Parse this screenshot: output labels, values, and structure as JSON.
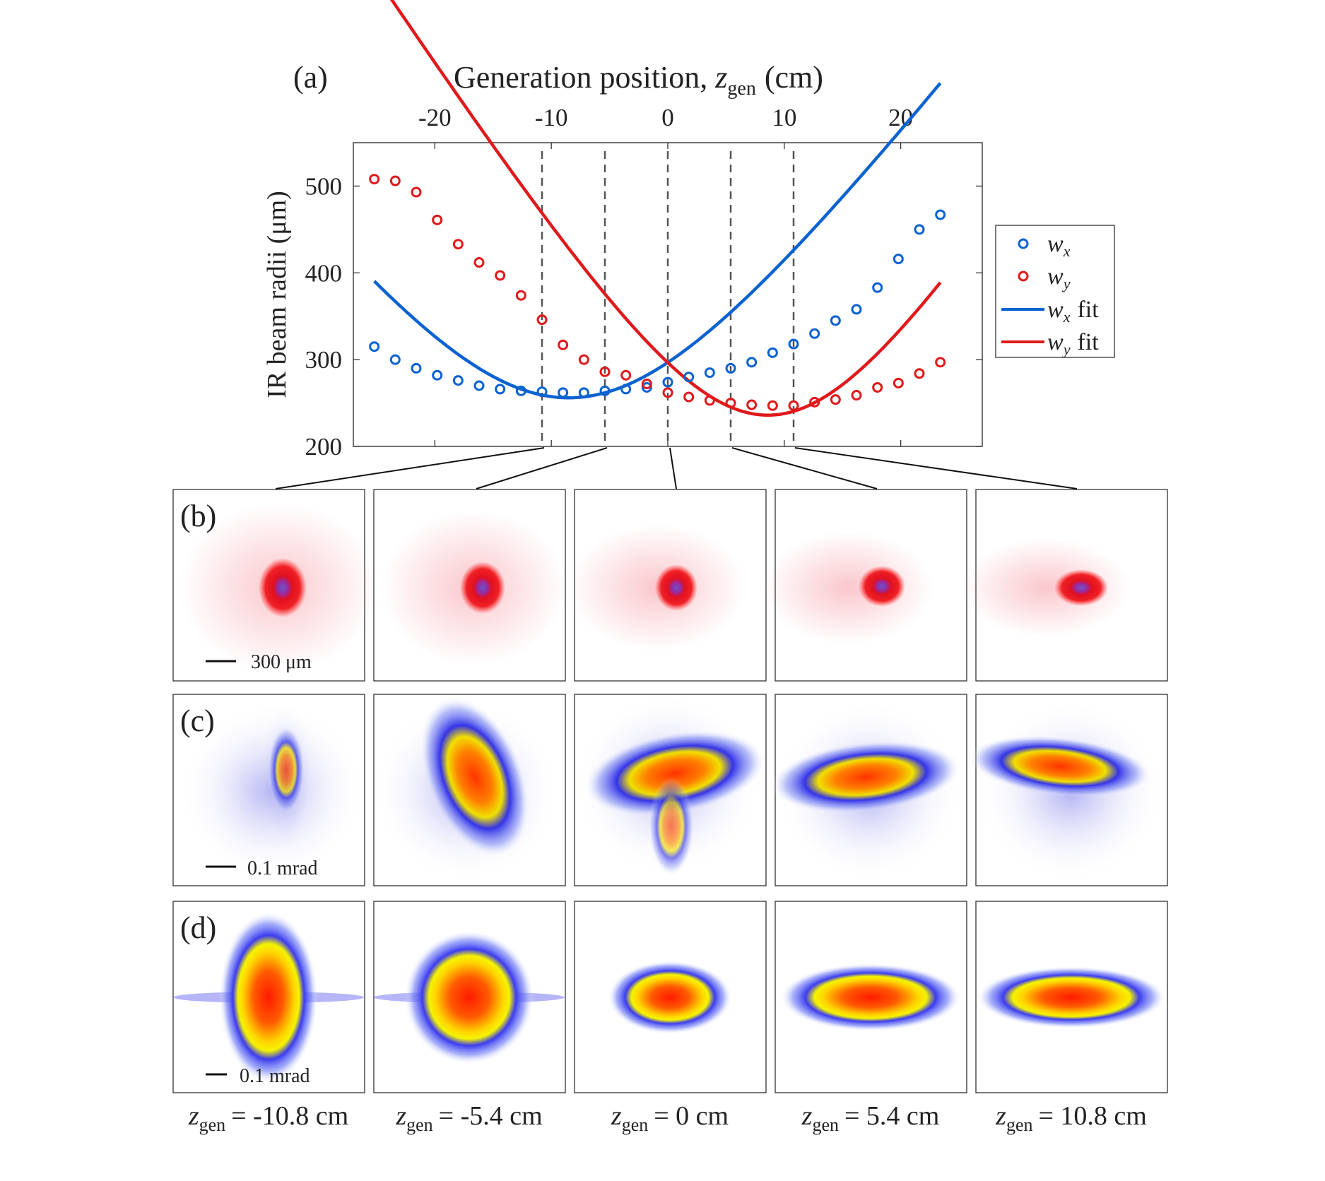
{
  "figure": {
    "panel_labels": {
      "a": "(a)",
      "b": "(b)",
      "c": "(c)",
      "d": "(d)"
    },
    "colors": {
      "wx": "#0b62d1",
      "wy": "#e0191b",
      "guide": "#555555"
    },
    "scale_bars": {
      "b": "300 μm",
      "c": "0.1 mrad",
      "d": "0.1 mrad"
    }
  },
  "chart_data": [
    {
      "type": "scatter",
      "panel": "(a)",
      "title": "",
      "xlabel_main": "Generation position,",
      "xlabel_var": "z",
      "xlabel_sub": "gen",
      "xlabel_unit": "(cm)",
      "ylabel": "IR beam radii (μm)",
      "xlim": [
        -27,
        27
      ],
      "ylim": [
        200,
        550
      ],
      "xticks": [
        -20,
        -10,
        0,
        10,
        20
      ],
      "xtick_labels": [
        "-20",
        "-10",
        "0",
        "10",
        "20"
      ],
      "yticks": [
        200,
        300,
        400,
        500
      ],
      "ytick_labels": [
        "200",
        "300",
        "400",
        "500"
      ],
      "vertical_lines": [
        -10.8,
        -5.4,
        0,
        5.4,
        10.8
      ],
      "legend": [
        {
          "symbol": "w",
          "sub": "x",
          "suffix": ""
        },
        {
          "symbol": "w",
          "sub": "y",
          "suffix": ""
        },
        {
          "symbol": "w",
          "sub": "x",
          "suffix": "fit"
        },
        {
          "symbol": "w",
          "sub": "y",
          "suffix": "fit"
        }
      ],
      "x": [
        -25.2,
        -23.4,
        -21.6,
        -19.8,
        -18.0,
        -16.2,
        -14.4,
        -12.6,
        -10.8,
        -9.0,
        -7.2,
        -5.4,
        -3.6,
        -1.8,
        0,
        1.8,
        3.6,
        5.4,
        7.2,
        9.0,
        10.8,
        12.6,
        14.4,
        16.2,
        18.0,
        19.8,
        21.6,
        23.4
      ],
      "series": [
        {
          "name": "wx",
          "values": [
            315,
            300,
            290,
            282,
            276,
            270,
            266,
            264,
            263,
            262,
            262,
            264,
            266,
            268,
            274,
            280,
            285,
            290,
            297,
            308,
            318,
            330,
            345,
            358,
            383,
            416,
            450,
            467
          ]
        },
        {
          "name": "wy",
          "values": [
            508,
            506,
            493,
            461,
            433,
            412,
            397,
            374,
            346,
            317,
            300,
            286,
            282,
            272,
            262,
            257,
            253,
            250,
            248,
            247,
            247,
            251,
            254,
            259,
            268,
            273,
            284,
            297
          ]
        },
        {
          "name": "wx fit",
          "fit": "gaussian-beam",
          "w0": 256,
          "z0": -8.5,
          "zr": 14.5,
          "range": [
            -25.2,
            23.4
          ]
        },
        {
          "name": "wy fit",
          "fit": "gaussian-beam",
          "w0": 236,
          "z0": 8.6,
          "zr": 11.3,
          "range": [
            -25.2,
            23.4
          ]
        }
      ]
    },
    {
      "type": "heatmap",
      "panel": "(b)",
      "description_values": [
        "z_gen = -10.8 cm",
        "z_gen = -5.4 cm",
        "z_gen = 0 cm",
        "z_gen = 5.4 cm",
        "z_gen = 10.8 cm"
      ],
      "spot_sizes": [
        [
          42,
          50
        ],
        [
          38,
          44
        ],
        [
          34,
          38
        ],
        [
          36,
          32
        ],
        [
          40,
          28
        ]
      ]
    },
    {
      "type": "heatmap",
      "panel": "(c)",
      "columns": 5
    },
    {
      "type": "heatmap",
      "panel": "(d)",
      "ellipse_semi_axes": [
        [
          70,
          122
        ],
        [
          92,
          95
        ],
        [
          88,
          52
        ],
        [
          128,
          48
        ],
        [
          138,
          44
        ]
      ]
    }
  ],
  "bottom_labels": [
    {
      "var": "z",
      "sub": "gen",
      "text": "= -10.8 cm"
    },
    {
      "var": "z",
      "sub": "gen",
      "text": "= -5.4 cm"
    },
    {
      "var": "z",
      "sub": "gen",
      "text": "= 0 cm"
    },
    {
      "var": "z",
      "sub": "gen",
      "text": "= 5.4 cm"
    },
    {
      "var": "z",
      "sub": "gen",
      "text": "= 10.8 cm"
    }
  ]
}
